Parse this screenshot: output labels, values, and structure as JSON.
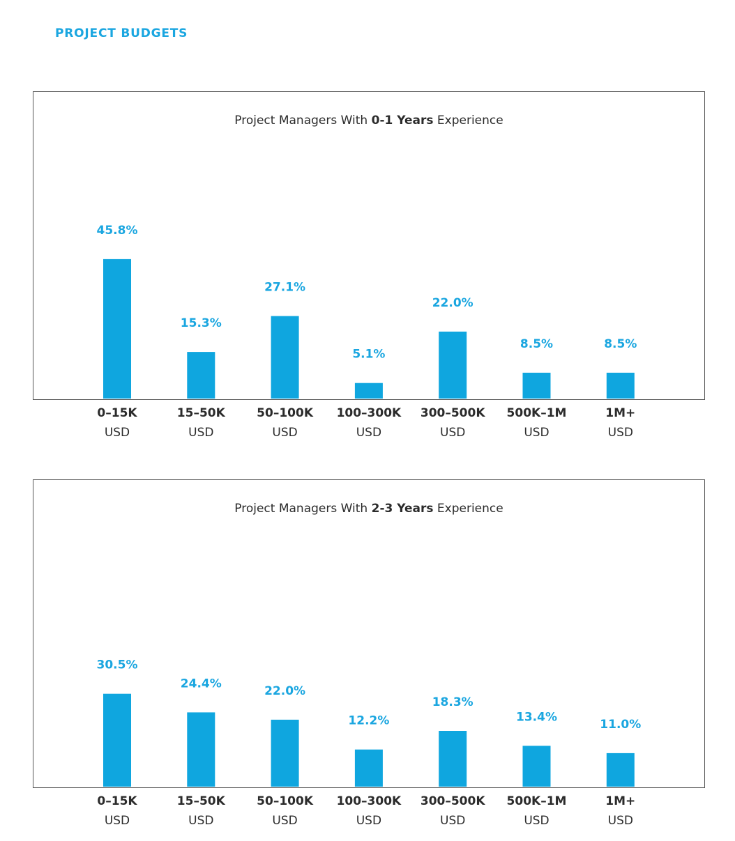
{
  "section_title": "PROJECT BUDGETS",
  "colors": {
    "accent": "#1aa6e0",
    "bar": "#0fa6df",
    "label_dark": "#2b2b2b",
    "frame": "#555555"
  },
  "chart_data": [
    {
      "type": "bar",
      "title_parts": [
        "Project Managers With ",
        "0-1 Years",
        " Experience"
      ],
      "categories": [
        "0–15K USD",
        "15–50K USD",
        "50–100K USD",
        "100–300K USD",
        "300–500K USD",
        "500K–1M USD",
        "1M+ USD"
      ],
      "category_lines": [
        [
          "0–15K",
          "USD"
        ],
        [
          "15–50K",
          "USD"
        ],
        [
          "50–100K",
          "USD"
        ],
        [
          "100–300K",
          "USD"
        ],
        [
          "300–500K",
          "USD"
        ],
        [
          "500K–1M",
          "USD"
        ],
        [
          "1M+",
          "USD"
        ]
      ],
      "values": [
        45.8,
        15.3,
        27.1,
        5.1,
        22.0,
        8.5,
        8.5
      ],
      "value_labels": [
        "45.8%",
        "15.3%",
        "27.1%",
        "5.1%",
        "22.0%",
        "8.5%",
        "8.5%"
      ],
      "unit": "%",
      "ylim": [
        0,
        75
      ],
      "grid": false,
      "xlabel": "",
      "ylabel": ""
    },
    {
      "type": "bar",
      "title_parts": [
        "Project Managers With ",
        "2-3 Years",
        " Experience"
      ],
      "categories": [
        "0–15K USD",
        "15–50K USD",
        "50–100K USD",
        "100–300K USD",
        "300–500K USD",
        "500K–1M USD",
        "1M+ USD"
      ],
      "category_lines": [
        [
          "0–15K",
          "USD"
        ],
        [
          "15–50K",
          "USD"
        ],
        [
          "50–100K",
          "USD"
        ],
        [
          "100–300K",
          "USD"
        ],
        [
          "300–500K",
          "USD"
        ],
        [
          "500K–1M",
          "USD"
        ],
        [
          "1M+",
          "USD"
        ]
      ],
      "values": [
        30.5,
        24.4,
        22.0,
        12.2,
        18.3,
        13.4,
        11.0
      ],
      "value_labels": [
        "30.5%",
        "24.4%",
        "22.0%",
        "12.2%",
        "18.3%",
        "13.4%",
        "11.0%"
      ],
      "unit": "%",
      "ylim": [
        0,
        75
      ],
      "grid": false,
      "xlabel": "",
      "ylabel": ""
    }
  ]
}
